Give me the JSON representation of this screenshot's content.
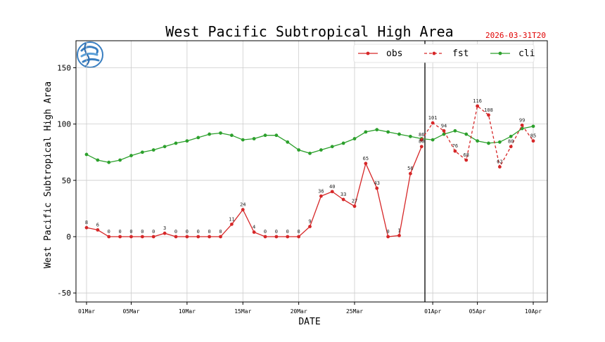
{
  "header": {
    "title": "West Pacific Subtropical High Area",
    "timestamp": "2026-03-31T20"
  },
  "logo": {
    "icon": "meteorological-logo-icon"
  },
  "colors": {
    "obs": "#d62728",
    "fst": "#d62728",
    "cli": "#2ca02c",
    "grid": "#cccccc",
    "separator": "#000000",
    "timestamp": "#e00000"
  },
  "chart_data": {
    "type": "line",
    "title": "West Pacific Subtropical High Area",
    "xlabel": "DATE",
    "ylabel": "West Pacific Subtropical High Area",
    "ylim": [
      -58,
      174
    ],
    "y_ticks": [
      -50,
      0,
      50,
      100,
      150
    ],
    "xlim": [
      0,
      40.2
    ],
    "x_ticks": [
      {
        "x": 0,
        "label": "01Mar"
      },
      {
        "x": 4,
        "label": "05Mar"
      },
      {
        "x": 9,
        "label": "10Mar"
      },
      {
        "x": 14,
        "label": "15Mar"
      },
      {
        "x": 19,
        "label": "20Mar"
      },
      {
        "x": 24,
        "label": "25Mar"
      },
      {
        "x": 31,
        "label": "01Apr"
      },
      {
        "x": 35,
        "label": "05Apr"
      },
      {
        "x": 40,
        "label": "10Apr"
      }
    ],
    "grid": true,
    "legend_position": "top-right",
    "separator_x": 30.3,
    "series": [
      {
        "name": "obs",
        "style": "solid",
        "x": [
          0,
          1,
          2,
          3,
          4,
          5,
          6,
          7,
          8,
          9,
          10,
          11,
          12,
          13,
          14,
          15,
          16,
          17,
          18,
          19,
          20,
          21,
          22,
          23,
          24,
          25,
          26,
          27,
          28,
          29,
          30
        ],
        "values": [
          8,
          6,
          0,
          0,
          0,
          0,
          0,
          3,
          0,
          0,
          0,
          0,
          0,
          11,
          24,
          4,
          0,
          0,
          0,
          0,
          9,
          36,
          40,
          33,
          27,
          65,
          43,
          0,
          1,
          56,
          80
        ],
        "labels": [
          "8",
          "6",
          "0",
          "0",
          "0",
          "0",
          "0",
          "3",
          "0",
          "0",
          "0",
          "0",
          "0",
          "11",
          "24",
          "4",
          "0",
          "0",
          "0",
          "0",
          "9",
          "36",
          "40",
          "33",
          "27",
          "65",
          "43",
          "0",
          "1",
          "56",
          "80"
        ]
      },
      {
        "name": "fst",
        "style": "dashed",
        "x": [
          30,
          31,
          32,
          33,
          34,
          35,
          36,
          37,
          38,
          39,
          40
        ],
        "values": [
          86,
          101,
          94,
          76,
          68,
          116,
          108,
          62,
          80,
          99,
          85
        ],
        "labels": [
          "86",
          "101",
          "94",
          "76",
          "68",
          "116",
          "108",
          "62",
          "80",
          "99",
          "85"
        ]
      },
      {
        "name": "cli",
        "style": "solid",
        "x": [
          0,
          1,
          2,
          3,
          4,
          5,
          6,
          7,
          8,
          9,
          10,
          11,
          12,
          13,
          14,
          15,
          16,
          17,
          18,
          19,
          20,
          21,
          22,
          23,
          24,
          25,
          26,
          27,
          28,
          29,
          30,
          31,
          32,
          33,
          34,
          35,
          36,
          37,
          38,
          39,
          40
        ],
        "values": [
          73,
          68,
          66,
          68,
          72,
          75,
          77,
          80,
          83,
          85,
          88,
          91,
          92,
          90,
          86,
          87,
          90,
          90,
          84,
          77,
          74,
          77,
          80,
          83,
          87,
          93,
          95,
          93,
          91,
          89,
          87,
          86,
          91,
          94,
          91,
          85,
          83,
          84,
          89,
          96,
          98
        ]
      }
    ]
  }
}
